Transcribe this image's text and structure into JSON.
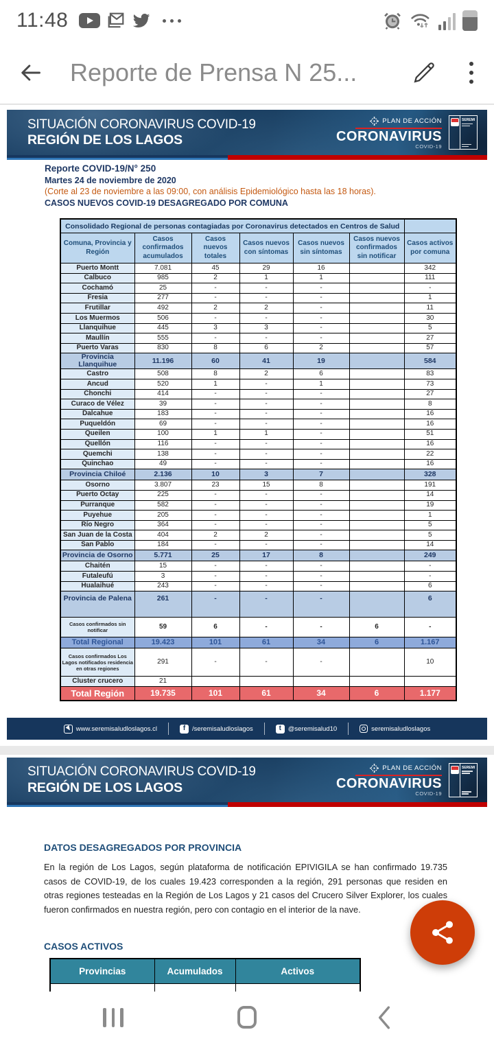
{
  "status_bar": {
    "time": "11:48"
  },
  "app_bar": {
    "title": "Reporte de Prensa N 25..."
  },
  "doc": {
    "header": {
      "title_line1": "SITUACIÓN CORONAVIRUS COVID-19",
      "title_line2": "REGIÓN DE LOS LAGOS",
      "plan_label": "PLAN DE ACCIÓN",
      "brand": "CORONAVIRUS",
      "brand_sub": "COVID-19",
      "gov_label": "SEREMI"
    },
    "report": {
      "line1": "Reporte COVID-19/N° 250",
      "line2": "Martes 24 de noviembre de 2020",
      "line3": "(Corte al 23 de noviembre a las 09:00, con análisis Epidemiológico hasta las 18 horas).",
      "line4": "CASOS NUEVOS COVID-19 DESAGREGADO POR COMUNA"
    },
    "table": {
      "banner": "Consolidado Regional de personas contagiadas por Coronavirus detectados en Centros de Salud",
      "columns": [
        "Comuna, Provincia y Región",
        "Casos confirmados acumulados",
        "Casos nuevos totales",
        "Casos nuevos con síntomas",
        "Casos nuevos sin síntomas",
        "Casos nuevos confirmados sin notificar",
        "Casos activos por comuna"
      ],
      "rows": [
        {
          "l": "Puerto Montt",
          "v": [
            "7.081",
            "45",
            "29",
            "16",
            "",
            "342"
          ],
          "t": "comuna"
        },
        {
          "l": "Calbuco",
          "v": [
            "985",
            "2",
            "1",
            "1",
            "",
            "111"
          ],
          "t": "comuna"
        },
        {
          "l": "Cochamó",
          "v": [
            "25",
            "-",
            "-",
            "-",
            "",
            "-"
          ],
          "t": "comuna"
        },
        {
          "l": "Fresia",
          "v": [
            "277",
            "-",
            "-",
            "-",
            "",
            "1"
          ],
          "t": "comuna"
        },
        {
          "l": "Frutillar",
          "v": [
            "492",
            "2",
            "2",
            "-",
            "",
            "11"
          ],
          "t": "comuna"
        },
        {
          "l": "Los Muermos",
          "v": [
            "506",
            "-",
            "-",
            "-",
            "",
            "30"
          ],
          "t": "comuna"
        },
        {
          "l": "Llanquihue",
          "v": [
            "445",
            "3",
            "3",
            "-",
            "",
            "5"
          ],
          "t": "comuna"
        },
        {
          "l": "Maullín",
          "v": [
            "555",
            "-",
            "-",
            "-",
            "",
            "27"
          ],
          "t": "comuna"
        },
        {
          "l": "Puerto Varas",
          "v": [
            "830",
            "8",
            "6",
            "2",
            "",
            "57"
          ],
          "t": "comuna"
        },
        {
          "l": "Provincia Llanquihue",
          "v": [
            "11.196",
            "60",
            "41",
            "19",
            "",
            "584"
          ],
          "t": "subtotal"
        },
        {
          "l": "Castro",
          "v": [
            "508",
            "8",
            "2",
            "6",
            "",
            "83"
          ],
          "t": "comuna"
        },
        {
          "l": "Ancud",
          "v": [
            "520",
            "1",
            "-",
            "1",
            "",
            "73"
          ],
          "t": "comuna"
        },
        {
          "l": "Chonchi",
          "v": [
            "414",
            "-",
            "-",
            "-",
            "",
            "27"
          ],
          "t": "comuna"
        },
        {
          "l": "Curaco de Vélez",
          "v": [
            "39",
            "-",
            "-",
            "-",
            "",
            "8"
          ],
          "t": "comuna"
        },
        {
          "l": "Dalcahue",
          "v": [
            "183",
            "-",
            "-",
            "-",
            "",
            "16"
          ],
          "t": "comuna"
        },
        {
          "l": "Puqueldón",
          "v": [
            "69",
            "-",
            "-",
            "-",
            "",
            "16"
          ],
          "t": "comuna"
        },
        {
          "l": "Queilen",
          "v": [
            "100",
            "1",
            "1",
            "-",
            "",
            "51"
          ],
          "t": "comuna"
        },
        {
          "l": "Quellón",
          "v": [
            "116",
            "-",
            "-",
            "-",
            "",
            "16"
          ],
          "t": "comuna"
        },
        {
          "l": "Quemchi",
          "v": [
            "138",
            "-",
            "-",
            "-",
            "",
            "22"
          ],
          "t": "comuna"
        },
        {
          "l": "Quinchao",
          "v": [
            "49",
            "-",
            "-",
            "-",
            "",
            "16"
          ],
          "t": "comuna"
        },
        {
          "l": "Provincia Chiloé",
          "v": [
            "2.136",
            "10",
            "3",
            "7",
            "",
            "328"
          ],
          "t": "subtotal"
        },
        {
          "l": "Osorno",
          "v": [
            "3.807",
            "23",
            "15",
            "8",
            "",
            "191"
          ],
          "t": "comuna"
        },
        {
          "l": "Puerto Octay",
          "v": [
            "225",
            "-",
            "-",
            "-",
            "",
            "14"
          ],
          "t": "comuna"
        },
        {
          "l": "Purranque",
          "v": [
            "582",
            "-",
            "-",
            "-",
            "",
            "19"
          ],
          "t": "comuna"
        },
        {
          "l": "Puyehue",
          "v": [
            "205",
            "-",
            "-",
            "-",
            "",
            "1"
          ],
          "t": "comuna"
        },
        {
          "l": "Río Negro",
          "v": [
            "364",
            "-",
            "-",
            "-",
            "",
            "5"
          ],
          "t": "comuna"
        },
        {
          "l": "San Juan de la Costa",
          "v": [
            "404",
            "2",
            "2",
            "-",
            "",
            "5"
          ],
          "t": "comuna"
        },
        {
          "l": "San Pablo",
          "v": [
            "184",
            "-",
            "-",
            "-",
            "",
            "14"
          ],
          "t": "comuna"
        },
        {
          "l": "Provincia de Osorno",
          "v": [
            "5.771",
            "25",
            "17",
            "8",
            "",
            "249"
          ],
          "t": "subtotal"
        },
        {
          "l": "Chaitén",
          "v": [
            "15",
            "-",
            "-",
            "-",
            "",
            "-"
          ],
          "t": "comuna"
        },
        {
          "l": "Futaleufú",
          "v": [
            "3",
            "-",
            "-",
            "-",
            "",
            "-"
          ],
          "t": "comuna"
        },
        {
          "l": "Hualaihué",
          "v": [
            "243",
            "-",
            "-",
            "-",
            "",
            "6"
          ],
          "t": "comuna"
        },
        {
          "l": "Provincia de Palena",
          "v": [
            "261",
            "-",
            "-",
            "-",
            "",
            "6"
          ],
          "t": "subtotal-tall"
        },
        {
          "l": "Casos confirmados sin notificar",
          "v": [
            "59",
            "6",
            "-",
            "-",
            "6",
            "-"
          ],
          "t": "note"
        },
        {
          "l": "Total Regional",
          "v": [
            "19.423",
            "101",
            "61",
            "34",
            "6",
            "1.167"
          ],
          "t": "total-regional"
        },
        {
          "l": "Casos confirmados Los Lagos notificados residencia en otras regiones",
          "v": [
            "291",
            "-",
            "-",
            "-",
            "",
            "10"
          ],
          "t": "note3"
        },
        {
          "l": "Cluster crucero",
          "v": [
            "21",
            "",
            "",
            "",
            "",
            ""
          ],
          "t": "comuna"
        },
        {
          "l": "Total Región",
          "v": [
            "19.735",
            "101",
            "61",
            "34",
            "6",
            "1.177"
          ],
          "t": "total"
        }
      ]
    },
    "footer": {
      "items": [
        {
          "label": "www.seremisaludloslagos.cl"
        },
        {
          "label": "/seremisaludloslagos"
        },
        {
          "label": "@seremisalud10"
        },
        {
          "label": "seremisaludloslagos"
        }
      ]
    }
  },
  "page2": {
    "heading1": "DATOS DESAGREGADOS POR PROVINCIA",
    "paragraph": "En la región de Los Lagos, según plataforma de notificación EPIVIGILA se han confirmado 19.735 casos de COVID-19, de los cuales 19.423 corresponden a la región, 291 personas que residen en otras regiones testeadas en la Región de Los Lagos y 21 casos del Crucero Silver Explorer, los cuales fueron confirmados en nuestra región, pero con contagio en el interior de la nave.",
    "heading2": "CASOS ACTIVOS",
    "table2": {
      "columns": [
        "Provincias",
        "Acumulados",
        "Activos"
      ]
    }
  },
  "colors": {
    "band_navy": "#1d4266",
    "accent_red": "#C00000",
    "table_header_blue": "#BDD7EE",
    "subtotal_blue": "#B8CCE4",
    "total_regional_blue": "#8EAADB",
    "total_red": "#E8696B",
    "teal_header": "#31859C",
    "fab_orange": "#CE3D08"
  }
}
